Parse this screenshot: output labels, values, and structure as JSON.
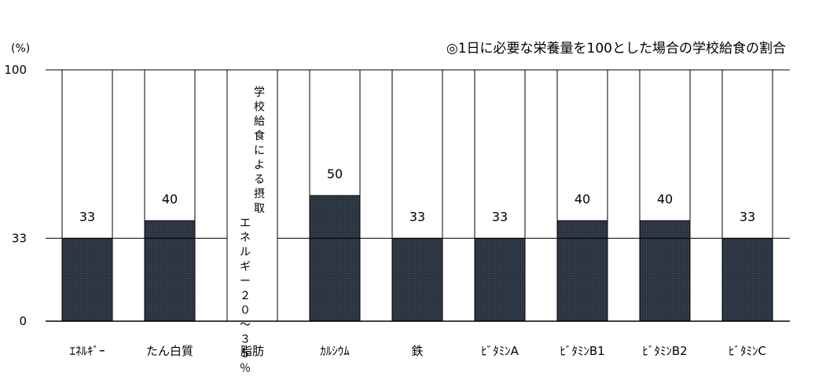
{
  "chart_data": {
    "type": "bar",
    "title": "◎1日に必要な栄養量を100とした場合の学校給食の割合",
    "ylabel": "(%)",
    "ylim": [
      0,
      100
    ],
    "yticks": [
      "100",
      "33",
      "0"
    ],
    "ytick_values": [
      100,
      33,
      0
    ],
    "reference_line": 33,
    "categories": [
      "ｴﾈﾙｷﾞｰ",
      "たん白質",
      "脂肪",
      "ｶﾙｼｳﾑ",
      "鉄",
      "ﾋﾞﾀﾐﾝA",
      "ﾋﾞﾀﾐﾝB1",
      "ﾋﾞﾀﾐﾝB2",
      "ﾋﾞﾀﾐﾝC"
    ],
    "values": [
      33,
      40,
      null,
      50,
      33,
      33,
      40,
      40,
      33
    ],
    "value_labels": [
      "33",
      "40",
      "",
      "50",
      "33",
      "33",
      "40",
      "40",
      "33"
    ],
    "annotations": [
      {
        "category": "脂肪",
        "text": "学校給食による摂取エネルギー２０～３５％"
      }
    ],
    "colors": {
      "fill": "#2c3340",
      "background_bar": "#ffffff",
      "outline": "#000000"
    },
    "grid": false
  }
}
